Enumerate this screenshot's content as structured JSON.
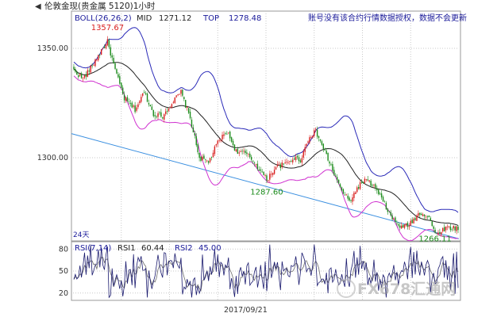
{
  "chart_data": [
    {
      "type": "candlestick",
      "title": "伦敦金现(贵金属 5120)1小时",
      "indicator": {
        "label": "BOLL(26,26,2)",
        "mid_label": "MID",
        "mid_value": "1271.12",
        "top_label": "TOP",
        "top_value": "1278.48"
      },
      "notice": "账号没有该合约行情数据授权，数据不会更新",
      "ylim": [
        1262,
        1367
      ],
      "y_ticks": [
        {
          "value": 1300,
          "label": "1300.00"
        },
        {
          "value": 1350,
          "label": "1350.00"
        }
      ],
      "annotations": [
        {
          "label": "1357.67",
          "value": 1357.67,
          "at_bar": 22
        },
        {
          "label": "1287.60",
          "value": 1287.6,
          "at_bar": 126
        },
        {
          "label": "1266.11",
          "value": 1266.11,
          "at_bar": 236
        }
      ],
      "period_label": "24天",
      "trendline": {
        "from_bar": 0,
        "from_value": 1311,
        "to_bar": 251,
        "to_value": 1263
      },
      "anchors_close": [
        [
          0,
          1340
        ],
        [
          6,
          1336
        ],
        [
          12,
          1342
        ],
        [
          18,
          1349
        ],
        [
          22,
          1353
        ],
        [
          27,
          1340
        ],
        [
          33,
          1327
        ],
        [
          40,
          1322
        ],
        [
          46,
          1330
        ],
        [
          52,
          1320
        ],
        [
          58,
          1319
        ],
        [
          64,
          1325
        ],
        [
          70,
          1330
        ],
        [
          76,
          1318
        ],
        [
          82,
          1300
        ],
        [
          88,
          1298
        ],
        [
          94,
          1307
        ],
        [
          100,
          1312
        ],
        [
          106,
          1303
        ],
        [
          112,
          1302
        ],
        [
          118,
          1298
        ],
        [
          126,
          1290
        ],
        [
          132,
          1296
        ],
        [
          138,
          1297
        ],
        [
          144,
          1300
        ],
        [
          148,
          1299
        ],
        [
          154,
          1310
        ],
        [
          158,
          1312
        ],
        [
          162,
          1306
        ],
        [
          168,
          1296
        ],
        [
          174,
          1286
        ],
        [
          180,
          1280
        ],
        [
          186,
          1287
        ],
        [
          190,
          1290
        ],
        [
          196,
          1287
        ],
        [
          202,
          1280
        ],
        [
          208,
          1272
        ],
        [
          214,
          1268
        ],
        [
          220,
          1270
        ],
        [
          226,
          1275
        ],
        [
          232,
          1273
        ],
        [
          236,
          1265
        ],
        [
          243,
          1268
        ]
      ],
      "series_names": [
        "MID",
        "TOP",
        "BOT"
      ]
    },
    {
      "type": "line",
      "indicator": {
        "label": "RSI(7,14)",
        "rsi1_label": "RSI1",
        "rsi1_value": "60.44",
        "rsi2_label": "RSI2",
        "rsi2_value": "45.00"
      },
      "ylim": [
        10,
        90
      ],
      "y_ticks": [
        {
          "value": 80,
          "label": "80"
        },
        {
          "value": 50,
          "label": "50"
        },
        {
          "value": 20,
          "label": "20"
        }
      ],
      "series_names": [
        "RSI1",
        "RSI2"
      ]
    }
  ],
  "x_axis": {
    "date_label": "2017/09/21"
  },
  "watermark": "FX678汇通网",
  "colors": {
    "up": "#d81e1e",
    "down": "#1a8a1a",
    "mid": "#222222",
    "top": "#2a2ab8",
    "bot": "#d032d0",
    "trend": "#3a8fe0",
    "rsi1": "#1a1a6e",
    "rsi2": "#6a6a6a",
    "grid": "#c9c9c9",
    "frame": "#999999",
    "label_blue": "#1a1a9a"
  }
}
